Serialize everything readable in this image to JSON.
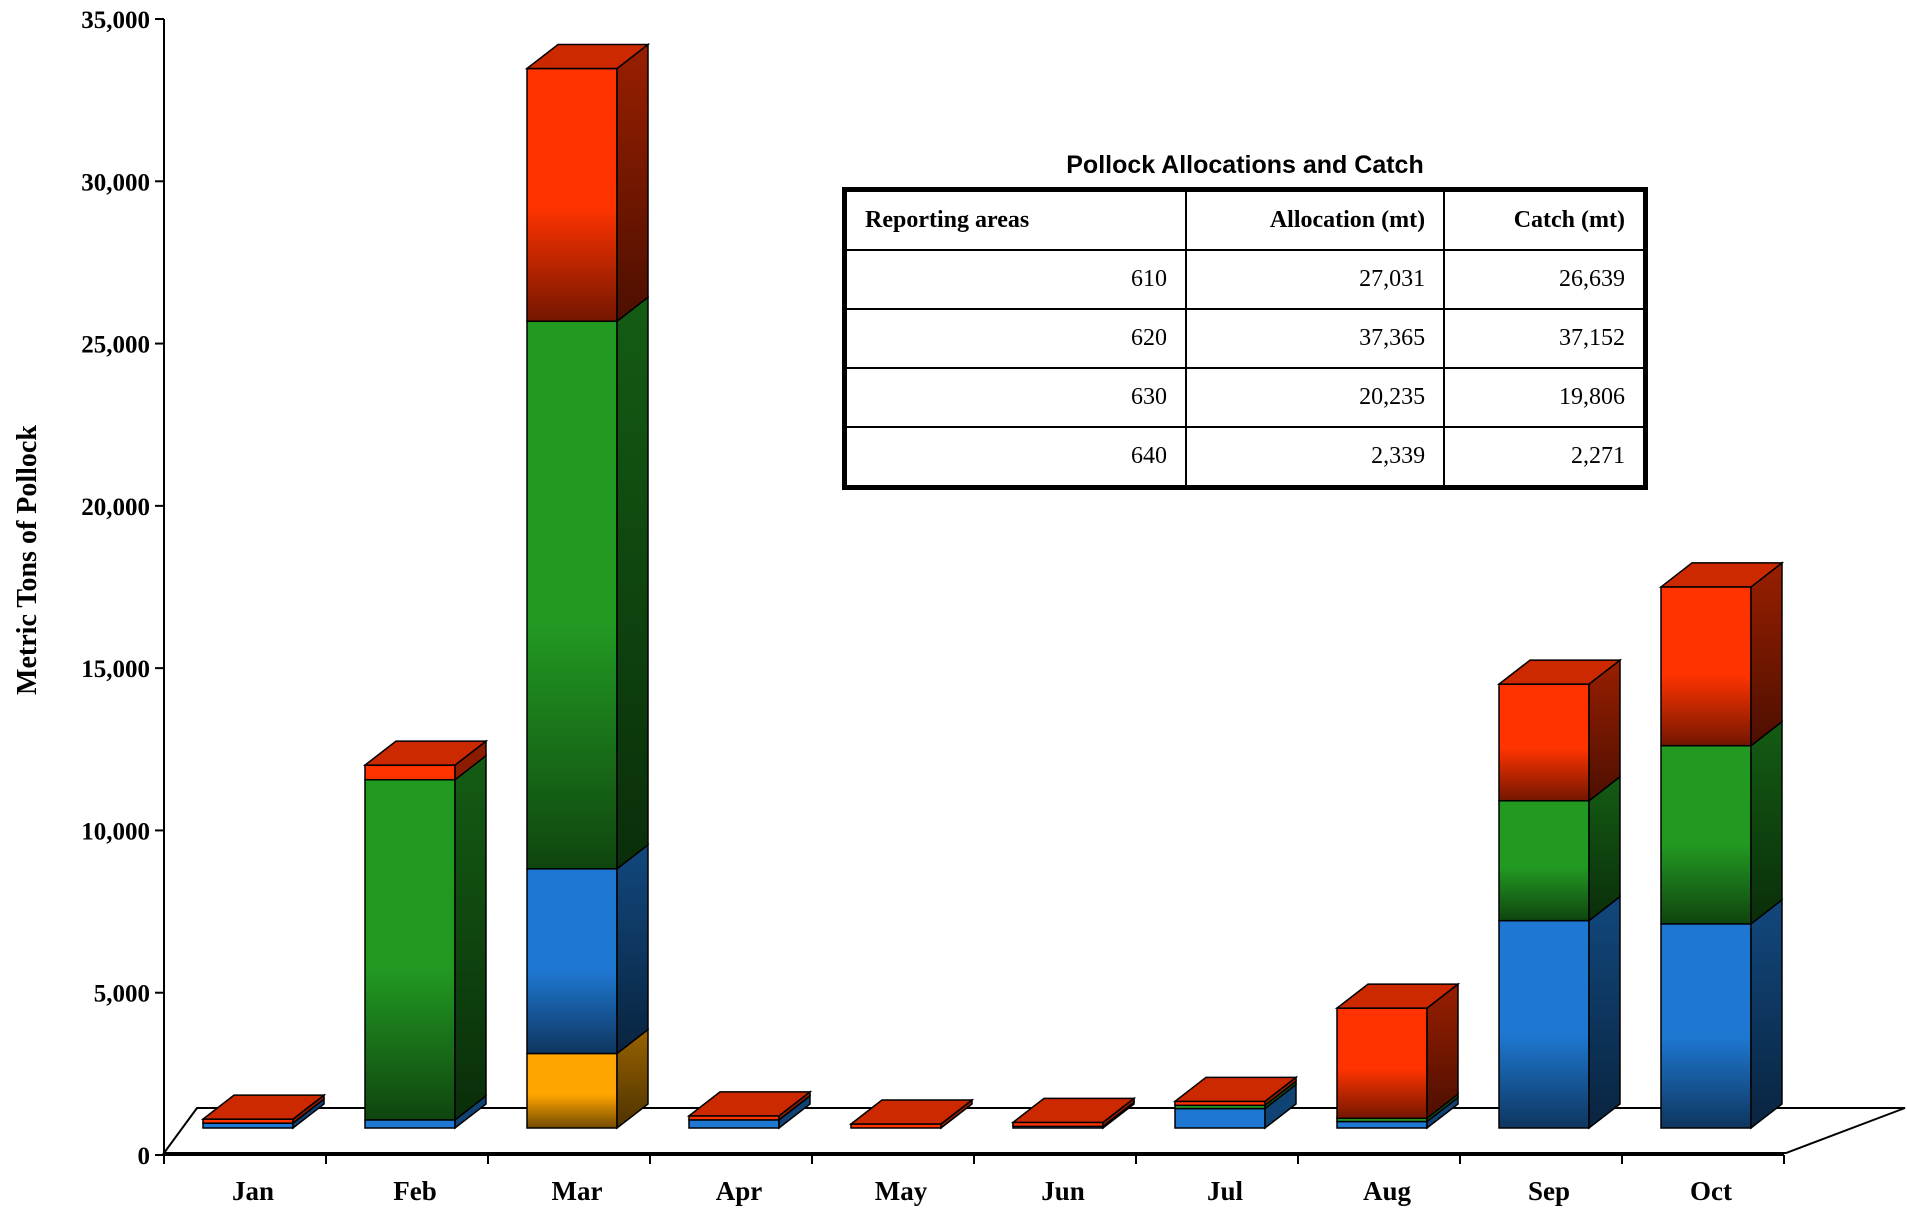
{
  "chart_data": {
    "type": "bar",
    "stacked": true,
    "three_d": true,
    "ylabel": "Metric Tons of Pollock",
    "xlabel": "",
    "ylim": [
      0,
      35000
    ],
    "yticks": [
      0,
      5000,
      10000,
      15000,
      20000,
      25000,
      30000,
      35000
    ],
    "ytick_labels": [
      "0",
      "5,000",
      "10,000",
      "15,000",
      "20,000",
      "25,000",
      "30,000",
      "35,000"
    ],
    "categories": [
      "Jan",
      "Feb",
      "Mar",
      "Apr",
      "May",
      "Jun",
      "Jul",
      "Aug",
      "Sep",
      "Oct"
    ],
    "series": [
      {
        "color": "#FFA500",
        "values": [
          0,
          0,
          2300,
          0,
          0,
          0,
          0,
          0,
          0,
          0
        ]
      },
      {
        "color": "#1E78D2",
        "values": [
          150,
          250,
          5700,
          250,
          0,
          50,
          600,
          200,
          6400,
          6300
        ]
      },
      {
        "color": "#229A22",
        "values": [
          0,
          10500,
          16900,
          0,
          0,
          0,
          100,
          100,
          3700,
          5500
        ]
      },
      {
        "color": "#FF3300",
        "values": [
          20,
          450,
          7800,
          30,
          20,
          20,
          50,
          3400,
          3600,
          4900
        ]
      }
    ],
    "grid": false,
    "legend": "none"
  },
  "table": {
    "title": "Pollock Allocations and Catch",
    "headers": [
      "Reporting areas",
      "Allocation (mt)",
      "Catch  (mt)"
    ],
    "rows": [
      [
        "610",
        "27,031",
        "26,639"
      ],
      [
        "620",
        "37,365",
        "37,152"
      ],
      [
        "630",
        "20,235",
        "19,806"
      ],
      [
        "640",
        "2,339",
        "2,271"
      ]
    ]
  }
}
